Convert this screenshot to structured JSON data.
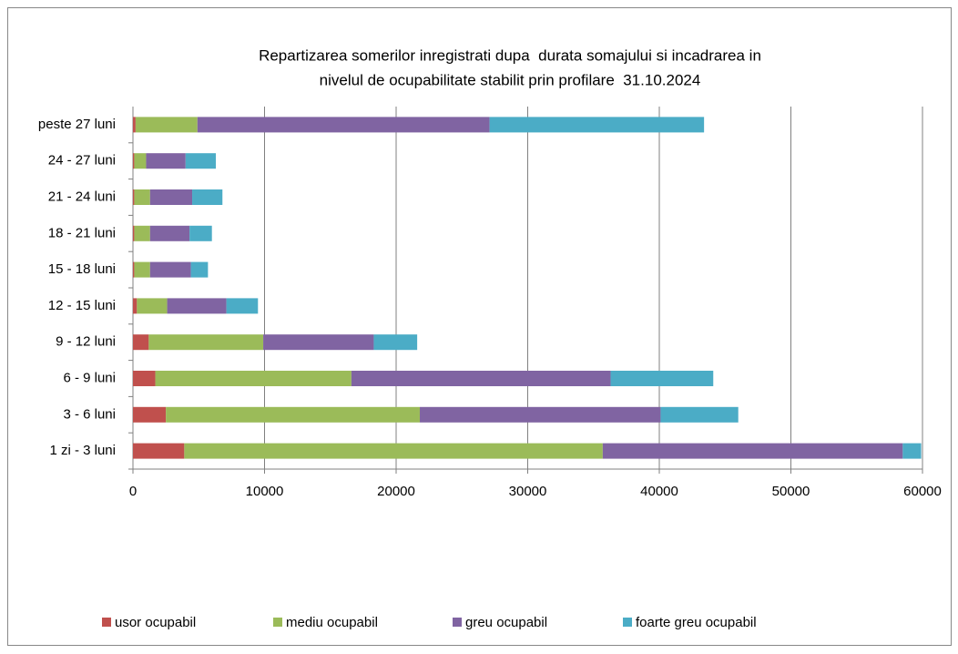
{
  "chart_data": {
    "type": "stacked-bar-horizontal",
    "title": [
      "Repartizarea somerilor inregistrati dupa  durata somajului si incadrarea in",
      "nivelul de ocupabilitate stabilit prin profilare  31.10.2024"
    ],
    "categories": [
      "1 zi - 3 luni",
      "3 - 6 luni",
      "6 - 9 luni",
      "9 - 12 luni",
      "12 - 15 luni",
      "15 - 18 luni",
      "18 - 21 luni",
      "21 - 24 luni",
      "24 - 27 luni",
      "peste 27 luni"
    ],
    "series": [
      {
        "name": "usor ocupabil",
        "color": "#c0504d",
        "values": [
          3900,
          2500,
          1700,
          1200,
          300,
          100,
          100,
          100,
          100,
          200
        ]
      },
      {
        "name": "mediu ocupabil",
        "color": "#9bbb59",
        "values": [
          31800,
          19300,
          14900,
          8700,
          2300,
          1200,
          1200,
          1200,
          900,
          4700
        ]
      },
      {
        "name": "greu ocupabil",
        "color": "#8064a2",
        "values": [
          22800,
          18300,
          19700,
          8400,
          4500,
          3100,
          3000,
          3200,
          3000,
          22200
        ]
      },
      {
        "name": "foarte greu ocupabil",
        "color": "#4bacc6",
        "values": [
          1400,
          5900,
          7800,
          3300,
          2400,
          1300,
          1700,
          2300,
          2300,
          16300
        ]
      }
    ],
    "xlim": [
      0,
      60000
    ],
    "xticks": [
      0,
      10000,
      20000,
      30000,
      40000,
      50000,
      60000
    ],
    "grid": true,
    "legend": "bottom"
  }
}
